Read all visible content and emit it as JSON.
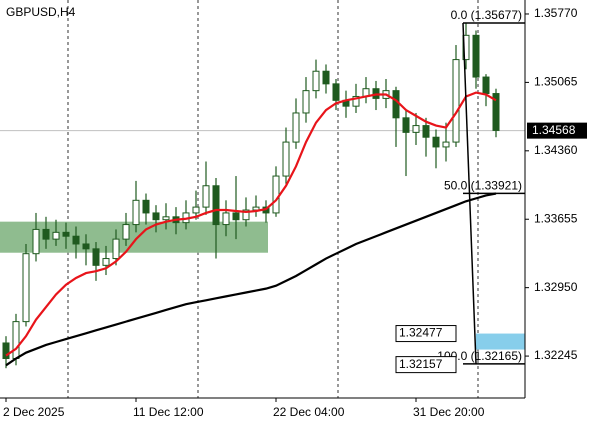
{
  "chart_data": {
    "type": "candlestick",
    "title": "GBPUSD,H4",
    "categories": [
      "2 Dec 2025",
      null,
      null,
      null,
      null,
      null,
      null,
      null,
      null,
      null,
      null,
      null,
      null,
      "11 Dec 12:00",
      null,
      null,
      null,
      null,
      null,
      null,
      null,
      null,
      null,
      null,
      null,
      null,
      null,
      "22 Dec 04:00",
      null,
      null,
      null,
      null,
      null,
      null,
      null,
      null,
      null,
      null,
      null,
      null,
      null,
      "31 Dec 20:00",
      null,
      null,
      null,
      null,
      null,
      null,
      null,
      null
    ],
    "open": [
      1.3238,
      1.3222,
      1.326,
      1.333,
      1.3355,
      1.3345,
      1.3352,
      1.3348,
      1.334,
      1.3335,
      1.3318,
      1.3325,
      1.3345,
      1.336,
      1.3385,
      1.3372,
      1.3365,
      1.3368,
      1.3362,
      1.3372,
      1.3378,
      1.34,
      1.336,
      1.3372,
      1.3365,
      1.3375,
      1.3378,
      1.3372,
      1.341,
      1.3445,
      1.3475,
      1.3498,
      1.3518,
      1.3505,
      1.3488,
      1.3482,
      1.3492,
      1.35,
      1.349,
      1.3498,
      1.347,
      1.3455,
      1.3462,
      1.345,
      1.344,
      1.3445,
      1.353,
      1.3555,
      1.3512,
      1.3495
    ],
    "high": [
      1.3245,
      1.3268,
      1.334,
      1.3372,
      1.3368,
      1.3365,
      1.3362,
      1.3358,
      1.335,
      1.3342,
      1.3338,
      1.3355,
      1.3372,
      1.3405,
      1.3392,
      1.338,
      1.3382,
      1.3378,
      1.3385,
      1.3395,
      1.3425,
      1.3408,
      1.3385,
      1.341,
      1.3388,
      1.339,
      1.3385,
      1.342,
      1.346,
      1.349,
      1.3512,
      1.353,
      1.3525,
      1.351,
      1.3498,
      1.3505,
      1.3512,
      1.3508,
      1.351,
      1.3502,
      1.3478,
      1.3475,
      1.347,
      1.3458,
      1.3465,
      1.3545,
      1.3568,
      1.356,
      1.3515,
      1.35
    ],
    "low": [
      1.3212,
      1.3215,
      1.3255,
      1.3322,
      1.3335,
      1.3338,
      1.3335,
      1.3325,
      1.3318,
      1.3302,
      1.3308,
      1.3318,
      1.3338,
      1.3352,
      1.336,
      1.3352,
      1.3355,
      1.335,
      1.3355,
      1.3365,
      1.337,
      1.3325,
      1.3348,
      1.3345,
      1.3358,
      1.3368,
      1.3362,
      1.3368,
      1.3402,
      1.3438,
      1.3465,
      1.349,
      1.3495,
      1.3478,
      1.347,
      1.3475,
      1.3485,
      1.3478,
      1.348,
      1.344,
      1.341,
      1.3442,
      1.343,
      1.3418,
      1.3425,
      1.344,
      1.352,
      1.35,
      1.3482,
      1.345
    ],
    "close": [
      1.3222,
      1.326,
      1.333,
      1.3355,
      1.3345,
      1.3352,
      1.3348,
      1.334,
      1.3335,
      1.3318,
      1.3325,
      1.3345,
      1.336,
      1.3385,
      1.3372,
      1.3365,
      1.3368,
      1.3362,
      1.3372,
      1.3378,
      1.34,
      1.336,
      1.3372,
      1.3365,
      1.3375,
      1.3378,
      1.3372,
      1.341,
      1.3445,
      1.3475,
      1.3498,
      1.3518,
      1.3505,
      1.3488,
      1.3482,
      1.3492,
      1.35,
      1.349,
      1.3498,
      1.347,
      1.3455,
      1.3462,
      1.345,
      1.344,
      1.3445,
      1.353,
      1.3555,
      1.3512,
      1.3495,
      1.3457
    ],
    "candle_color": "#1f5a1f",
    "series": [
      {
        "color": "#e8141a",
        "values": [
          1.3225,
          1.3232,
          1.3245,
          1.3262,
          1.3275,
          1.3288,
          1.3298,
          1.3305,
          1.331,
          1.3312,
          1.3315,
          1.3322,
          1.3332,
          1.3345,
          1.3355,
          1.336,
          1.3363,
          1.3365,
          1.3366,
          1.3368,
          1.3372,
          1.3375,
          1.3375,
          1.3374,
          1.3373,
          1.3374,
          1.3376,
          1.3385,
          1.34,
          1.342,
          1.3445,
          1.3465,
          1.3478,
          1.3485,
          1.3488,
          1.349,
          1.3492,
          1.3494,
          1.3494,
          1.3488,
          1.3478,
          1.3472,
          1.3466,
          1.3462,
          1.346,
          1.3475,
          1.3492,
          1.3496,
          1.3494,
          1.3488
        ]
      },
      {
        "color": "#000000",
        "values": [
          1.3215,
          1.3222,
          1.3228,
          1.3232,
          1.3236,
          1.3239,
          1.3242,
          1.3245,
          1.3248,
          1.3251,
          1.3254,
          1.3257,
          1.326,
          1.3263,
          1.3266,
          1.3269,
          1.3272,
          1.3275,
          1.3278,
          1.328,
          1.3282,
          1.3284,
          1.3286,
          1.3288,
          1.329,
          1.3292,
          1.3294,
          1.3297,
          1.3302,
          1.3307,
          1.3313,
          1.3319,
          1.3325,
          1.333,
          1.3335,
          1.334,
          1.3344,
          1.3348,
          1.3352,
          1.3356,
          1.336,
          1.3364,
          1.3368,
          1.3372,
          1.3376,
          1.338,
          1.3384,
          1.3387,
          1.339,
          1.3392
        ]
      }
    ],
    "zone": {
      "low": 1.3331,
      "high": 1.3363,
      "color": "#8fbc8f"
    },
    "fibonacci": [
      {
        "value": 1.35677,
        "label": "0.0 (1.35677)"
      },
      {
        "value": 1.33921,
        "label": "50.0 (1.33921)"
      },
      {
        "value": 1.32165,
        "label": "100.0 (1.32165)"
      }
    ],
    "fib_area_color": "#87ceeb",
    "current_price": {
      "value": 1.34568,
      "label": "1.34568"
    },
    "price_labels": [
      {
        "value": 1.32477,
        "label": "1.32477"
      },
      {
        "value": 1.32157,
        "label": "1.32157"
      }
    ],
    "ylim": [
      1.31813,
      1.35914
    ],
    "yticks": [
      {
        "value": 1.3577,
        "label": "1.35770"
      },
      {
        "value": 1.35065,
        "label": "1.35065"
      },
      {
        "value": 1.3436,
        "label": "1.34360"
      },
      {
        "value": 1.33655,
        "label": "1.33655"
      },
      {
        "value": 1.3295,
        "label": "1.32950"
      },
      {
        "value": 1.32245,
        "label": "1.32245"
      }
    ],
    "grid": true
  }
}
